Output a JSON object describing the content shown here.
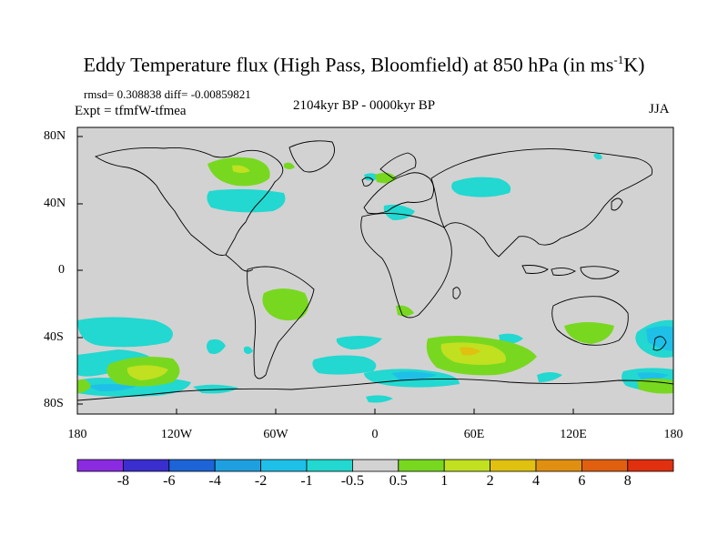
{
  "title": {
    "main": "Eddy Temperature flux (High Pass, Bloomfield) at 850 hPa (in ms",
    "sup": "-1",
    "tail": "K)"
  },
  "stats": "rmsd= 0.308838 diff= -0.00859821",
  "experiment": "Expt = tfmfW-tfmea",
  "period": "2104kyr BP - 0000kyr BP",
  "season": "JJA",
  "axes": {
    "lat_labels": [
      "80N",
      "40N",
      "0",
      "40S",
      "80S"
    ],
    "lon_labels": [
      "180",
      "120W",
      "60W",
      "0",
      "60E",
      "120E",
      "180"
    ]
  },
  "colorbar": {
    "labels": [
      "-8",
      "-6",
      "-4",
      "-2",
      "-1",
      "-0.5",
      "0.5",
      "1",
      "2",
      "4",
      "6",
      "8"
    ],
    "colors": [
      "#8a2be2",
      "#3a2ecf",
      "#1c64d8",
      "#1ea0e0",
      "#1ec0e8",
      "#22d8d0",
      "#d2d2d2",
      "#78d820",
      "#c0e020",
      "#e0c010",
      "#e09010",
      "#e06010",
      "#e03010"
    ]
  },
  "colors": {
    "background": "#d2d2d2",
    "positive_1": "#78d820",
    "positive_2": "#c0e020",
    "negative_1": "#22d8d0",
    "negative_2": "#1ec0e8"
  }
}
